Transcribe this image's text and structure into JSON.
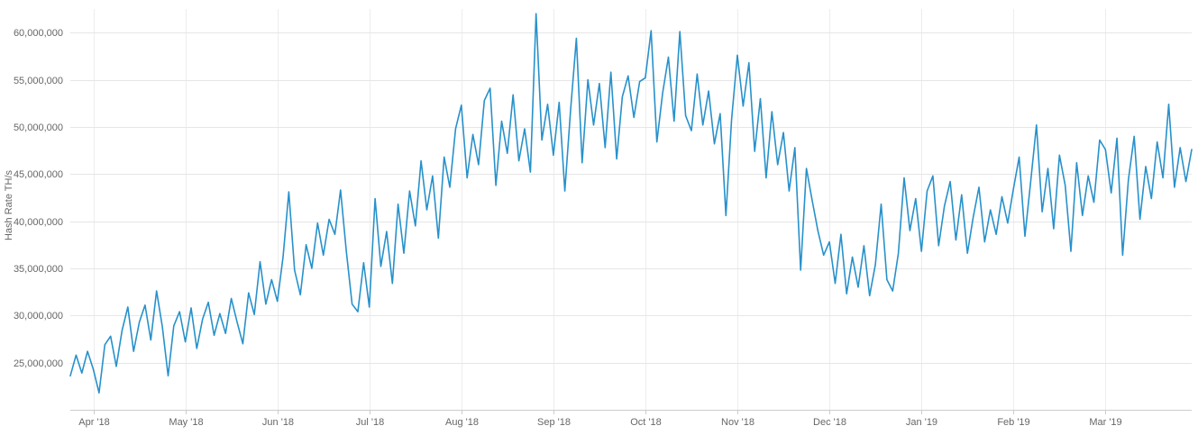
{
  "chart_data": {
    "type": "line",
    "title": "",
    "xlabel": "",
    "ylabel": "Hash Rate TH/s",
    "y_unit": "TH/s",
    "legend": "none",
    "grid": "on",
    "line_color": "#2791cb",
    "h_grid_color": "#e6e6e6",
    "v_grid_color": "#ededed",
    "axis_line_color": "#cccccc",
    "axis_text_color": "#666666",
    "background_color": "#ffffff",
    "ylim": [
      20000000,
      62500000
    ],
    "x_ticks": [
      "Apr '18",
      "May '18",
      "Jun '18",
      "Jul '18",
      "Aug '18",
      "Sep '18",
      "Oct '18",
      "Nov '18",
      "Dec '18",
      "Jan '19",
      "Feb '19",
      "Mar '19"
    ],
    "x_tick_indices": [
      4,
      20,
      36,
      52,
      68,
      84,
      100,
      116,
      132,
      148,
      164,
      180
    ],
    "y_tick_values": [
      25000000,
      30000000,
      35000000,
      40000000,
      45000000,
      50000000,
      55000000,
      60000000
    ],
    "y_tick_labels": [
      "25,000,000",
      "30,000,000",
      "35,000,000",
      "40,000,000",
      "45,000,000",
      "50,000,000",
      "55,000,000",
      "60,000,000"
    ],
    "series": [
      {
        "name": "Hash Rate",
        "unit": "million TH/s",
        "values_millions_ths": [
          23.6,
          25.8,
          23.9,
          26.2,
          24.3,
          21.8,
          26.9,
          27.8,
          24.6,
          28.4,
          30.9,
          26.2,
          29.3,
          31.1,
          27.4,
          32.6,
          28.8,
          23.6,
          28.9,
          30.4,
          27.2,
          30.8,
          26.5,
          29.6,
          31.4,
          27.9,
          30.2,
          28.1,
          31.8,
          29.3,
          27.0,
          32.4,
          30.1,
          35.7,
          31.2,
          33.8,
          31.5,
          36.2,
          43.1,
          34.8,
          32.2,
          37.5,
          35.0,
          39.8,
          36.4,
          40.2,
          38.6,
          43.3,
          36.8,
          31.2,
          30.4,
          35.6,
          30.9,
          42.4,
          35.2,
          38.9,
          33.4,
          41.8,
          36.6,
          43.2,
          39.5,
          46.4,
          41.2,
          44.8,
          38.2,
          46.8,
          43.6,
          49.8,
          52.3,
          44.6,
          49.2,
          46.0,
          52.8,
          54.1,
          43.8,
          50.6,
          47.2,
          53.4,
          46.4,
          49.8,
          45.2,
          62.0,
          48.6,
          52.4,
          47.0,
          52.6,
          43.2,
          51.8,
          59.4,
          46.2,
          55.0,
          50.2,
          54.6,
          47.8,
          55.8,
          46.6,
          53.2,
          55.4,
          51.0,
          54.8,
          55.2,
          60.2,
          48.4,
          53.6,
          57.4,
          50.6,
          60.1,
          51.2,
          49.6,
          55.6,
          50.2,
          53.8,
          48.2,
          51.4,
          40.6,
          50.8,
          57.6,
          52.2,
          56.8,
          47.4,
          53.0,
          44.6,
          51.6,
          46.0,
          49.4,
          43.2,
          47.8,
          34.8,
          45.6,
          42.2,
          39.0,
          36.4,
          37.8,
          33.4,
          38.6,
          32.3,
          36.2,
          33.0,
          37.4,
          32.1,
          35.4,
          41.8,
          33.8,
          32.6,
          36.6,
          44.6,
          39.0,
          42.4,
          36.8,
          43.2,
          44.8,
          37.4,
          41.6,
          44.2,
          38.0,
          42.8,
          36.6,
          40.4,
          43.6,
          37.8,
          41.2,
          38.6,
          42.6,
          39.8,
          43.4,
          46.8,
          38.4,
          44.2,
          50.2,
          41.0,
          45.6,
          39.2,
          47.0,
          43.8,
          36.8,
          46.2,
          40.6,
          44.8,
          42.0,
          48.6,
          47.6,
          43.0,
          48.8,
          36.4,
          44.4,
          49.0,
          40.2,
          45.8,
          42.4,
          48.4,
          44.6,
          52.4,
          43.6,
          47.8,
          44.2,
          47.6
        ]
      }
    ]
  }
}
